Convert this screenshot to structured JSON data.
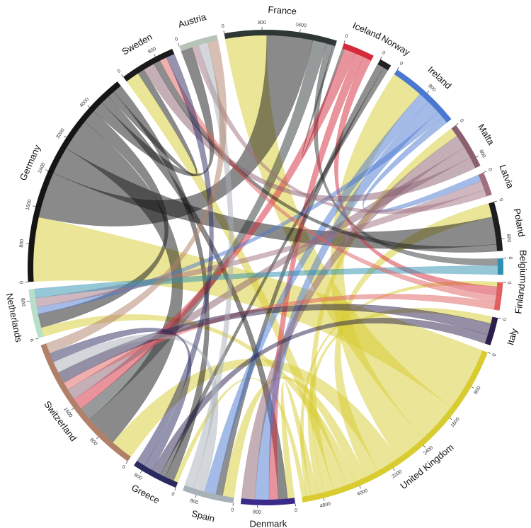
{
  "chart_data": {
    "type": "chord",
    "segments": [
      {
        "name": "France",
        "color": "#2f3636",
        "ticks": [
          0,
          800,
          1600
        ]
      },
      {
        "name": "Iceland",
        "color": "#d42a3a",
        "ticks": [
          0
        ]
      },
      {
        "name": "Norway",
        "color": "#222222",
        "ticks": [
          0
        ]
      },
      {
        "name": "Ireland",
        "color": "#4a78d0",
        "ticks": [
          0,
          800
        ]
      },
      {
        "name": "Malta",
        "color": "#8a6070",
        "ticks": [
          0,
          800
        ]
      },
      {
        "name": "Latvia",
        "color": "#a07080",
        "ticks": [
          0
        ]
      },
      {
        "name": "Poland",
        "color": "#1e1e1e",
        "ticks": [
          0,
          800
        ]
      },
      {
        "name": "Belgium",
        "color": "#2e8fb0",
        "ticks": [
          0
        ]
      },
      {
        "name": "Finland",
        "color": "#e06060",
        "ticks": [
          0
        ]
      },
      {
        "name": "Italy",
        "color": "#2a1f4a",
        "ticks": [
          0
        ]
      },
      {
        "name": "United Kingdom",
        "color": "#d8cc30",
        "ticks": [
          0,
          800,
          1600,
          2400,
          3200,
          4000,
          4800
        ]
      },
      {
        "name": "Denmark",
        "color": "#3a2a8a",
        "ticks": [
          0,
          800
        ]
      },
      {
        "name": "Spain",
        "color": "#a8b0b8",
        "ticks": [
          0,
          800
        ]
      },
      {
        "name": "Greece",
        "color": "#2a2a60",
        "ticks": [
          0,
          800
        ]
      },
      {
        "name": "Switzerland",
        "color": "#b08068",
        "ticks": [
          0,
          800,
          1600
        ]
      },
      {
        "name": "Netherlands",
        "color": "#b8e0c8",
        "ticks": [
          0,
          800
        ]
      },
      {
        "name": "Germany",
        "color": "#151515",
        "ticks": [
          0,
          800,
          1600,
          2400,
          3200,
          4000
        ]
      },
      {
        "name": "Sweden",
        "color": "#1a1a1a",
        "ticks": [
          0,
          800
        ]
      },
      {
        "name": "Austria",
        "color": "#b8c4b8",
        "ticks": [
          0
        ]
      }
    ],
    "flows": [
      {
        "source": "United Kingdom",
        "target": "Germany",
        "value": 1400
      },
      {
        "source": "United Kingdom",
        "target": "France",
        "value": 900
      },
      {
        "source": "United Kingdom",
        "target": "Ireland",
        "value": 700
      },
      {
        "source": "United Kingdom",
        "target": "Switzerland",
        "value": 500
      },
      {
        "source": "United Kingdom",
        "target": "Poland",
        "value": 300
      },
      {
        "source": "United Kingdom",
        "target": "Spain",
        "value": 250
      },
      {
        "source": "United Kingdom",
        "target": "Netherlands",
        "value": 200
      },
      {
        "source": "United Kingdom",
        "target": "Sweden",
        "value": 300
      },
      {
        "source": "United Kingdom",
        "target": "Malta",
        "value": 200
      },
      {
        "source": "United Kingdom",
        "target": "Italy",
        "value": 150
      },
      {
        "source": "United Kingdom",
        "target": "Denmark",
        "value": 150
      },
      {
        "source": "United Kingdom",
        "target": "Finland",
        "value": 100
      },
      {
        "source": "United Kingdom",
        "target": "Greece",
        "value": 100
      },
      {
        "source": "Germany",
        "target": "France",
        "value": 1000
      },
      {
        "source": "Germany",
        "target": "Poland",
        "value": 600
      },
      {
        "source": "Germany",
        "target": "Switzerland",
        "value": 700
      },
      {
        "source": "Germany",
        "target": "Netherlands",
        "value": 300
      },
      {
        "source": "Germany",
        "target": "Austria",
        "value": 250
      },
      {
        "source": "Germany",
        "target": "Denmark",
        "value": 200
      },
      {
        "source": "Germany",
        "target": "Sweden",
        "value": 150
      },
      {
        "source": "Germany",
        "target": "Greece",
        "value": 200
      },
      {
        "source": "France",
        "target": "Switzerland",
        "value": 300
      },
      {
        "source": "France",
        "target": "Belgium",
        "value": 150
      },
      {
        "source": "France",
        "target": "Iceland",
        "value": 50
      },
      {
        "source": "Iceland",
        "target": "Switzerland",
        "value": 250
      },
      {
        "source": "Iceland",
        "target": "Denmark",
        "value": 200
      },
      {
        "source": "Iceland",
        "target": "Finland",
        "value": 180
      },
      {
        "source": "Norway",
        "target": "Spain",
        "value": 150
      },
      {
        "source": "Norway",
        "target": "Greece",
        "value": 110
      },
      {
        "source": "Ireland",
        "target": "Spain",
        "value": 250
      },
      {
        "source": "Ireland",
        "target": "Denmark",
        "value": 300
      },
      {
        "source": "Ireland",
        "target": "Netherlands",
        "value": 150
      },
      {
        "source": "Ireland",
        "target": "Latvia",
        "value": 150
      },
      {
        "source": "Malta",
        "target": "Denmark",
        "value": 300
      },
      {
        "source": "Malta",
        "target": "Switzerland",
        "value": 250
      },
      {
        "source": "Malta",
        "target": "Sweden",
        "value": 250
      },
      {
        "source": "Latvia",
        "target": "Netherlands",
        "value": 200
      },
      {
        "source": "Latvia",
        "target": "Austria",
        "value": 150
      },
      {
        "source": "Poland",
        "target": "Sweden",
        "value": 150
      },
      {
        "source": "Belgium",
        "target": "Netherlands",
        "value": 200
      },
      {
        "source": "Finland",
        "target": "Sweden",
        "value": 150
      },
      {
        "source": "Finland",
        "target": "Switzerland",
        "value": 170
      },
      {
        "source": "Italy",
        "target": "Switzerland",
        "value": 250
      },
      {
        "source": "Italy",
        "target": "Greece",
        "value": 200
      },
      {
        "source": "Spain",
        "target": "Switzerland",
        "value": 250
      },
      {
        "source": "Spain",
        "target": "Austria",
        "value": 200
      },
      {
        "source": "Greece",
        "target": "Switzerland",
        "value": 200
      },
      {
        "source": "Greece",
        "target": "Sweden",
        "value": 190
      },
      {
        "source": "Switzerland",
        "target": "Austria",
        "value": 230
      }
    ]
  }
}
